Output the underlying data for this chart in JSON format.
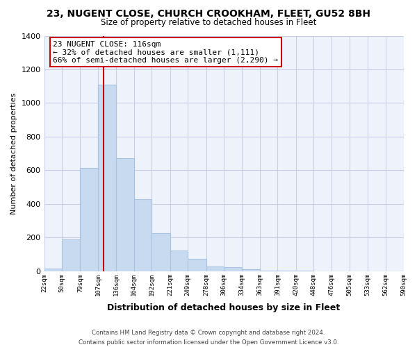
{
  "title": "23, NUGENT CLOSE, CHURCH CROOKHAM, FLEET, GU52 8BH",
  "subtitle": "Size of property relative to detached houses in Fleet",
  "xlabel": "Distribution of detached houses by size in Fleet",
  "ylabel": "Number of detached properties",
  "bar_color": "#c8daf0",
  "bar_edge_color": "#a8c4e0",
  "bins": [
    22,
    50,
    79,
    107,
    136,
    164,
    192,
    221,
    249,
    278,
    306,
    334,
    363,
    391,
    420,
    448,
    476,
    505,
    533,
    562,
    590
  ],
  "values": [
    15,
    190,
    615,
    1110,
    670,
    430,
    225,
    125,
    75,
    30,
    25,
    10,
    5,
    2,
    2,
    1,
    0,
    0,
    0,
    0
  ],
  "tick_labels": [
    "22sqm",
    "50sqm",
    "79sqm",
    "107sqm",
    "136sqm",
    "164sqm",
    "192sqm",
    "221sqm",
    "249sqm",
    "278sqm",
    "306sqm",
    "334sqm",
    "363sqm",
    "391sqm",
    "420sqm",
    "448sqm",
    "476sqm",
    "505sqm",
    "533sqm",
    "562sqm",
    "590sqm"
  ],
  "ylim": [
    0,
    1400
  ],
  "yticks": [
    0,
    200,
    400,
    600,
    800,
    1000,
    1200,
    1400
  ],
  "property_line_x": 116,
  "property_line_color": "#cc0000",
  "annotation_line1": "23 NUGENT CLOSE: 116sqm",
  "annotation_line2": "← 32% of detached houses are smaller (1,111)",
  "annotation_line3": "66% of semi-detached houses are larger (2,290) →",
  "annotation_box_color": "#ffffff",
  "annotation_box_edge_color": "#cc0000",
  "footer_text": "Contains HM Land Registry data © Crown copyright and database right 2024.\nContains public sector information licensed under the Open Government Licence v3.0.",
  "background_color": "#ffffff",
  "plot_bg_color": "#eef2fb",
  "grid_color": "#c8cfe8"
}
